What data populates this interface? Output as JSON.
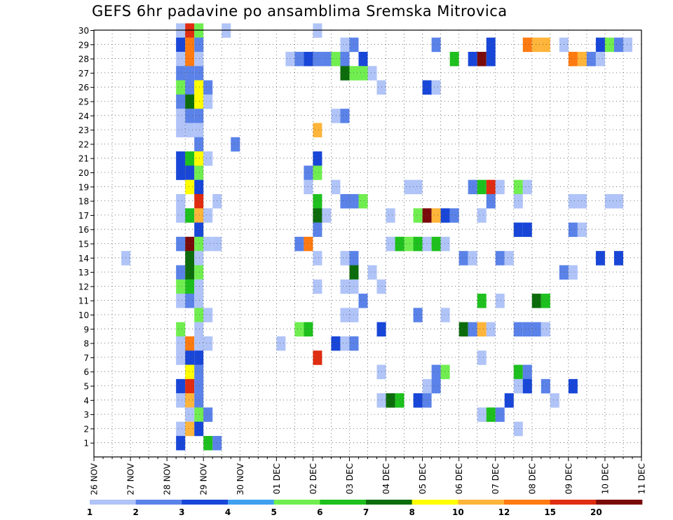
{
  "title": "GEFS 6hr padavine po ansamblima Sremska Mitrovica",
  "chart_data": {
    "type": "heatmap",
    "title": "GEFS 6hr padavine po ansamblima Sremska Mitrovica",
    "x_tick_labels": [
      "26 NOV",
      "27 NOV",
      "28 NOV",
      "29 NOV",
      "30 NOV",
      "01 DEC",
      "02 DEC",
      "03 DEC",
      "04 DEC",
      "05 DEC",
      "06 DEC",
      "07 DEC",
      "08 DEC",
      "09 DEC",
      "10 DEC",
      "11 DEC"
    ],
    "y_tick_labels": [
      "1",
      "2",
      "3",
      "4",
      "5",
      "6",
      "7",
      "8",
      "9",
      "10",
      "11",
      "12",
      "13",
      "14",
      "15",
      "16",
      "17",
      "18",
      "19",
      "20",
      "21",
      "22",
      "23",
      "24",
      "25",
      "26",
      "27",
      "28",
      "29",
      "30"
    ],
    "x_range": [
      "26 NOV 00h",
      "11 DEC 00h"
    ],
    "y_range": [
      0,
      30
    ],
    "colorbar": {
      "labels": [
        "1",
        "2",
        "3",
        "4",
        "5",
        "6",
        "7",
        "8",
        "10",
        "12",
        "15",
        "20"
      ],
      "colors": [
        "#b0c4f8",
        "#5a82e8",
        "#1846d8",
        "#3fa0f0",
        "#70ee50",
        "#1ec01e",
        "#0c6c0c",
        "#ffff00",
        "#ffb43a",
        "#ff7a10",
        "#e02c10",
        "#7a0a0a"
      ]
    },
    "cells": [
      {
        "m": 30,
        "t": "28 NOV 06h",
        "v": 1
      },
      {
        "m": 30,
        "t": "28 NOV 12h",
        "v": 15
      },
      {
        "m": 30,
        "t": "28 NOV 18h",
        "v": 5
      },
      {
        "m": 30,
        "t": "29 NOV 12h",
        "v": 1
      },
      {
        "m": 30,
        "t": "02 DEC 00h",
        "v": 1
      },
      {
        "m": 29,
        "t": "28 NOV 06h",
        "v": 3
      },
      {
        "m": 29,
        "t": "28 NOV 12h",
        "v": 12
      },
      {
        "m": 29,
        "t": "28 NOV 18h",
        "v": 2
      },
      {
        "m": 29,
        "t": "02 DEC 18h",
        "v": 1
      },
      {
        "m": 29,
        "t": "03 DEC 00h",
        "v": 2
      },
      {
        "m": 29,
        "t": "05 DEC 06h",
        "v": 2
      },
      {
        "m": 29,
        "t": "06 DEC 18h",
        "v": 3
      },
      {
        "m": 29,
        "t": "07 DEC 18h",
        "v": 12
      },
      {
        "m": 29,
        "t": "08 DEC 00h",
        "v": 10
      },
      {
        "m": 29,
        "t": "08 DEC 06h",
        "v": 10
      },
      {
        "m": 29,
        "t": "08 DEC 18h",
        "v": 1
      },
      {
        "m": 29,
        "t": "09 DEC 18h",
        "v": 3
      },
      {
        "m": 29,
        "t": "10 DEC 00h",
        "v": 5
      },
      {
        "m": 29,
        "t": "10 DEC 06h",
        "v": 2
      },
      {
        "m": 29,
        "t": "10 DEC 12h",
        "v": 1
      },
      {
        "m": 28,
        "t": "28 NOV 06h",
        "v": 1
      },
      {
        "m": 28,
        "t": "28 NOV 12h",
        "v": 12
      },
      {
        "m": 28,
        "t": "28 NOV 18h",
        "v": 1
      },
      {
        "m": 28,
        "t": "01 DEC 06h",
        "v": 1
      },
      {
        "m": 28,
        "t": "01 DEC 12h",
        "v": 2
      },
      {
        "m": 28,
        "t": "01 DEC 18h",
        "v": 3
      },
      {
        "m": 28,
        "t": "02 DEC 00h",
        "v": 2
      },
      {
        "m": 28,
        "t": "02 DEC 06h",
        "v": 2
      },
      {
        "m": 28,
        "t": "02 DEC 12h",
        "v": 5
      },
      {
        "m": 28,
        "t": "02 DEC 18h",
        "v": 2
      },
      {
        "m": 28,
        "t": "03 DEC 06h",
        "v": 3
      },
      {
        "m": 28,
        "t": "05 DEC 18h",
        "v": 6
      },
      {
        "m": 28,
        "t": "06 DEC 06h",
        "v": 3
      },
      {
        "m": 28,
        "t": "06 DEC 12h",
        "v": 20
      },
      {
        "m": 28,
        "t": "06 DEC 18h",
        "v": 3
      },
      {
        "m": 28,
        "t": "09 DEC 00h",
        "v": 12
      },
      {
        "m": 28,
        "t": "09 DEC 06h",
        "v": 10
      },
      {
        "m": 28,
        "t": "09 DEC 12h",
        "v": 2
      },
      {
        "m": 28,
        "t": "09 DEC 18h",
        "v": 1
      },
      {
        "m": 27,
        "t": "28 NOV 06h",
        "v": 2
      },
      {
        "m": 27,
        "t": "28 NOV 12h",
        "v": 2
      },
      {
        "m": 27,
        "t": "28 NOV 18h",
        "v": 2
      },
      {
        "m": 27,
        "t": "02 DEC 18h",
        "v": 7
      },
      {
        "m": 27,
        "t": "03 DEC 00h",
        "v": 5
      },
      {
        "m": 27,
        "t": "03 DEC 06h",
        "v": 5
      },
      {
        "m": 27,
        "t": "03 DEC 12h",
        "v": 1
      },
      {
        "m": 26,
        "t": "28 NOV 06h",
        "v": 5
      },
      {
        "m": 26,
        "t": "28 NOV 12h",
        "v": 2
      },
      {
        "m": 26,
        "t": "28 NOV 18h",
        "v": 8
      },
      {
        "m": 26,
        "t": "29 NOV 00h",
        "v": 2
      },
      {
        "m": 26,
        "t": "03 DEC 18h",
        "v": 1
      },
      {
        "m": 26,
        "t": "05 DEC 00h",
        "v": 3
      },
      {
        "m": 26,
        "t": "05 DEC 06h",
        "v": 1
      },
      {
        "m": 25,
        "t": "28 NOV 06h",
        "v": 2
      },
      {
        "m": 25,
        "t": "28 NOV 12h",
        "v": 7
      },
      {
        "m": 25,
        "t": "28 NOV 18h",
        "v": 8
      },
      {
        "m": 25,
        "t": "29 NOV 00h",
        "v": 1
      },
      {
        "m": 24,
        "t": "28 NOV 06h",
        "v": 1
      },
      {
        "m": 24,
        "t": "28 NOV 12h",
        "v": 2
      },
      {
        "m": 24,
        "t": "28 NOV 18h",
        "v": 2
      },
      {
        "m": 24,
        "t": "02 DEC 12h",
        "v": 1
      },
      {
        "m": 24,
        "t": "02 DEC 18h",
        "v": 2
      },
      {
        "m": 23,
        "t": "28 NOV 06h",
        "v": 1
      },
      {
        "m": 23,
        "t": "28 NOV 12h",
        "v": 1
      },
      {
        "m": 23,
        "t": "28 NOV 18h",
        "v": 1
      },
      {
        "m": 23,
        "t": "02 DEC 00h",
        "v": 10
      },
      {
        "m": 22,
        "t": "28 NOV 18h",
        "v": 2
      },
      {
        "m": 22,
        "t": "29 NOV 18h",
        "v": 2
      },
      {
        "m": 21,
        "t": "28 NOV 06h",
        "v": 3
      },
      {
        "m": 21,
        "t": "28 NOV 12h",
        "v": 6
      },
      {
        "m": 21,
        "t": "28 NOV 18h",
        "v": 8
      },
      {
        "m": 21,
        "t": "29 NOV 00h",
        "v": 1
      },
      {
        "m": 21,
        "t": "02 DEC 00h",
        "v": 3
      },
      {
        "m": 20,
        "t": "28 NOV 06h",
        "v": 3
      },
      {
        "m": 20,
        "t": "28 NOV 12h",
        "v": 3
      },
      {
        "m": 20,
        "t": "28 NOV 18h",
        "v": 5
      },
      {
        "m": 20,
        "t": "01 DEC 18h",
        "v": 2
      },
      {
        "m": 20,
        "t": "02 DEC 00h",
        "v": 5
      },
      {
        "m": 19,
        "t": "28 NOV 12h",
        "v": 8
      },
      {
        "m": 19,
        "t": "28 NOV 18h",
        "v": 3
      },
      {
        "m": 19,
        "t": "01 DEC 18h",
        "v": 1
      },
      {
        "m": 19,
        "t": "02 DEC 12h",
        "v": 1
      },
      {
        "m": 19,
        "t": "04 DEC 12h",
        "v": 1
      },
      {
        "m": 19,
        "t": "04 DEC 18h",
        "v": 1
      },
      {
        "m": 19,
        "t": "06 DEC 06h",
        "v": 2
      },
      {
        "m": 19,
        "t": "06 DEC 12h",
        "v": 6
      },
      {
        "m": 19,
        "t": "06 DEC 18h",
        "v": 15
      },
      {
        "m": 19,
        "t": "07 DEC 00h",
        "v": 1
      },
      {
        "m": 19,
        "t": "07 DEC 12h",
        "v": 5
      },
      {
        "m": 19,
        "t": "07 DEC 18h",
        "v": 1
      },
      {
        "m": 18,
        "t": "28 NOV 06h",
        "v": 1
      },
      {
        "m": 18,
        "t": "28 NOV 18h",
        "v": 15
      },
      {
        "m": 18,
        "t": "29 NOV 06h",
        "v": 1
      },
      {
        "m": 18,
        "t": "02 DEC 00h",
        "v": 6
      },
      {
        "m": 18,
        "t": "02 DEC 18h",
        "v": 2
      },
      {
        "m": 18,
        "t": "03 DEC 00h",
        "v": 2
      },
      {
        "m": 18,
        "t": "03 DEC 06h",
        "v": 5
      },
      {
        "m": 18,
        "t": "06 DEC 18h",
        "v": 2
      },
      {
        "m": 18,
        "t": "07 DEC 12h",
        "v": 1
      },
      {
        "m": 18,
        "t": "09 DEC 00h",
        "v": 1
      },
      {
        "m": 18,
        "t": "09 DEC 06h",
        "v": 1
      },
      {
        "m": 18,
        "t": "10 DEC 00h",
        "v": 1
      },
      {
        "m": 18,
        "t": "10 DEC 06h",
        "v": 1
      },
      {
        "m": 17,
        "t": "28 NOV 06h",
        "v": 1
      },
      {
        "m": 17,
        "t": "28 NOV 12h",
        "v": 6
      },
      {
        "m": 17,
        "t": "28 NOV 18h",
        "v": 10
      },
      {
        "m": 17,
        "t": "29 NOV 00h",
        "v": 1
      },
      {
        "m": 17,
        "t": "02 DEC 00h",
        "v": 7
      },
      {
        "m": 17,
        "t": "02 DEC 06h",
        "v": 1
      },
      {
        "m": 17,
        "t": "04 DEC 00h",
        "v": 1
      },
      {
        "m": 17,
        "t": "04 DEC 18h",
        "v": 5
      },
      {
        "m": 17,
        "t": "05 DEC 00h",
        "v": 20
      },
      {
        "m": 17,
        "t": "05 DEC 06h",
        "v": 10
      },
      {
        "m": 17,
        "t": "05 DEC 12h",
        "v": 3
      },
      {
        "m": 17,
        "t": "05 DEC 18h",
        "v": 2
      },
      {
        "m": 17,
        "t": "06 DEC 12h",
        "v": 1
      },
      {
        "m": 16,
        "t": "28 NOV 18h",
        "v": 3
      },
      {
        "m": 16,
        "t": "02 DEC 00h",
        "v": 2
      },
      {
        "m": 16,
        "t": "07 DEC 12h",
        "v": 3
      },
      {
        "m": 16,
        "t": "07 DEC 18h",
        "v": 3
      },
      {
        "m": 16,
        "t": "09 DEC 00h",
        "v": 2
      },
      {
        "m": 16,
        "t": "09 DEC 06h",
        "v": 1
      },
      {
        "m": 15,
        "t": "28 NOV 06h",
        "v": 2
      },
      {
        "m": 15,
        "t": "28 NOV 12h",
        "v": 20
      },
      {
        "m": 15,
        "t": "28 NOV 18h",
        "v": 5
      },
      {
        "m": 15,
        "t": "29 NOV 00h",
        "v": 1
      },
      {
        "m": 15,
        "t": "29 NOV 06h",
        "v": 1
      },
      {
        "m": 15,
        "t": "01 DEC 12h",
        "v": 2
      },
      {
        "m": 15,
        "t": "01 DEC 18h",
        "v": 12
      },
      {
        "m": 15,
        "t": "04 DEC 00h",
        "v": 1
      },
      {
        "m": 15,
        "t": "04 DEC 06h",
        "v": 6
      },
      {
        "m": 15,
        "t": "04 DEC 12h",
        "v": 5
      },
      {
        "m": 15,
        "t": "04 DEC 18h",
        "v": 6
      },
      {
        "m": 15,
        "t": "05 DEC 00h",
        "v": 1
      },
      {
        "m": 15,
        "t": "05 DEC 06h",
        "v": 6
      },
      {
        "m": 15,
        "t": "05 DEC 12h",
        "v": 1
      },
      {
        "m": 14,
        "t": "26 NOV 18h",
        "v": 1
      },
      {
        "m": 14,
        "t": "28 NOV 12h",
        "v": 7
      },
      {
        "m": 14,
        "t": "28 NOV 18h",
        "v": 1
      },
      {
        "m": 14,
        "t": "02 DEC 00h",
        "v": 1
      },
      {
        "m": 14,
        "t": "02 DEC 18h",
        "v": 1
      },
      {
        "m": 14,
        "t": "03 DEC 00h",
        "v": 2
      },
      {
        "m": 14,
        "t": "06 DEC 00h",
        "v": 2
      },
      {
        "m": 14,
        "t": "06 DEC 06h",
        "v": 1
      },
      {
        "m": 14,
        "t": "07 DEC 00h",
        "v": 2
      },
      {
        "m": 14,
        "t": "07 DEC 06h",
        "v": 1
      },
      {
        "m": 14,
        "t": "09 DEC 18h",
        "v": 3
      },
      {
        "m": 14,
        "t": "10 DEC 06h",
        "v": 3
      },
      {
        "m": 13,
        "t": "28 NOV 06h",
        "v": 2
      },
      {
        "m": 13,
        "t": "28 NOV 12h",
        "v": 7
      },
      {
        "m": 13,
        "t": "28 NOV 18h",
        "v": 5
      },
      {
        "m": 13,
        "t": "03 DEC 00h",
        "v": 7
      },
      {
        "m": 13,
        "t": "03 DEC 12h",
        "v": 1
      },
      {
        "m": 13,
        "t": "08 DEC 18h",
        "v": 2
      },
      {
        "m": 13,
        "t": "09 DEC 00h",
        "v": 1
      },
      {
        "m": 12,
        "t": "28 NOV 06h",
        "v": 5
      },
      {
        "m": 12,
        "t": "28 NOV 12h",
        "v": 6
      },
      {
        "m": 12,
        "t": "28 NOV 18h",
        "v": 1
      },
      {
        "m": 12,
        "t": "02 DEC 00h",
        "v": 1
      },
      {
        "m": 12,
        "t": "02 DEC 18h",
        "v": 1
      },
      {
        "m": 12,
        "t": "03 DEC 00h",
        "v": 1
      },
      {
        "m": 12,
        "t": "03 DEC 18h",
        "v": 1
      },
      {
        "m": 11,
        "t": "28 NOV 06h",
        "v": 1
      },
      {
        "m": 11,
        "t": "28 NOV 12h",
        "v": 2
      },
      {
        "m": 11,
        "t": "28 NOV 18h",
        "v": 1
      },
      {
        "m": 11,
        "t": "03 DEC 06h",
        "v": 2
      },
      {
        "m": 11,
        "t": "06 DEC 12h",
        "v": 6
      },
      {
        "m": 11,
        "t": "07 DEC 00h",
        "v": 1
      },
      {
        "m": 11,
        "t": "08 DEC 00h",
        "v": 7
      },
      {
        "m": 11,
        "t": "08 DEC 06h",
        "v": 6
      },
      {
        "m": 10,
        "t": "28 NOV 18h",
        "v": 5
      },
      {
        "m": 10,
        "t": "29 NOV 00h",
        "v": 1
      },
      {
        "m": 10,
        "t": "02 DEC 18h",
        "v": 1
      },
      {
        "m": 10,
        "t": "03 DEC 00h",
        "v": 1
      },
      {
        "m": 10,
        "t": "04 DEC 18h",
        "v": 2
      },
      {
        "m": 10,
        "t": "05 DEC 12h",
        "v": 1
      },
      {
        "m": 9,
        "t": "28 NOV 06h",
        "v": 5
      },
      {
        "m": 9,
        "t": "28 NOV 18h",
        "v": 1
      },
      {
        "m": 9,
        "t": "01 DEC 12h",
        "v": 5
      },
      {
        "m": 9,
        "t": "01 DEC 18h",
        "v": 6
      },
      {
        "m": 9,
        "t": "03 DEC 18h",
        "v": 3
      },
      {
        "m": 9,
        "t": "06 DEC 00h",
        "v": 7
      },
      {
        "m": 9,
        "t": "06 DEC 06h",
        "v": 2
      },
      {
        "m": 9,
        "t": "06 DEC 12h",
        "v": 10
      },
      {
        "m": 9,
        "t": "06 DEC 18h",
        "v": 1
      },
      {
        "m": 9,
        "t": "07 DEC 12h",
        "v": 2
      },
      {
        "m": 9,
        "t": "07 DEC 18h",
        "v": 2
      },
      {
        "m": 9,
        "t": "08 DEC 00h",
        "v": 2
      },
      {
        "m": 9,
        "t": "08 DEC 06h",
        "v": 1
      },
      {
        "m": 8,
        "t": "28 NOV 06h",
        "v": 1
      },
      {
        "m": 8,
        "t": "28 NOV 12h",
        "v": 12
      },
      {
        "m": 8,
        "t": "28 NOV 18h",
        "v": 1
      },
      {
        "m": 8,
        "t": "29 NOV 00h",
        "v": 1
      },
      {
        "m": 8,
        "t": "01 DEC 00h",
        "v": 1
      },
      {
        "m": 8,
        "t": "02 DEC 12h",
        "v": 3
      },
      {
        "m": 8,
        "t": "02 DEC 18h",
        "v": 1
      },
      {
        "m": 8,
        "t": "03 DEC 00h",
        "v": 2
      },
      {
        "m": 7,
        "t": "28 NOV 06h",
        "v": 1
      },
      {
        "m": 7,
        "t": "28 NOV 12h",
        "v": 3
      },
      {
        "m": 7,
        "t": "28 NOV 18h",
        "v": 3
      },
      {
        "m": 7,
        "t": "02 DEC 00h",
        "v": 15
      },
      {
        "m": 7,
        "t": "06 DEC 12h",
        "v": 1
      },
      {
        "m": 6,
        "t": "28 NOV 12h",
        "v": 8
      },
      {
        "m": 6,
        "t": "28 NOV 18h",
        "v": 2
      },
      {
        "m": 6,
        "t": "03 DEC 18h",
        "v": 1
      },
      {
        "m": 6,
        "t": "05 DEC 06h",
        "v": 2
      },
      {
        "m": 6,
        "t": "05 DEC 12h",
        "v": 5
      },
      {
        "m": 6,
        "t": "07 DEC 12h",
        "v": 6
      },
      {
        "m": 6,
        "t": "07 DEC 18h",
        "v": 2
      },
      {
        "m": 5,
        "t": "28 NOV 06h",
        "v": 3
      },
      {
        "m": 5,
        "t": "28 NOV 12h",
        "v": 15
      },
      {
        "m": 5,
        "t": "28 NOV 18h",
        "v": 2
      },
      {
        "m": 5,
        "t": "05 DEC 00h",
        "v": 1
      },
      {
        "m": 5,
        "t": "05 DEC 06h",
        "v": 2
      },
      {
        "m": 5,
        "t": "07 DEC 12h",
        "v": 1
      },
      {
        "m": 5,
        "t": "07 DEC 18h",
        "v": 3
      },
      {
        "m": 5,
        "t": "08 DEC 06h",
        "v": 2
      },
      {
        "m": 5,
        "t": "09 DEC 00h",
        "v": 3
      },
      {
        "m": 4,
        "t": "28 NOV 06h",
        "v": 1
      },
      {
        "m": 4,
        "t": "28 NOV 12h",
        "v": 10
      },
      {
        "m": 4,
        "t": "28 NOV 18h",
        "v": 2
      },
      {
        "m": 4,
        "t": "03 DEC 18h",
        "v": 1
      },
      {
        "m": 4,
        "t": "04 DEC 00h",
        "v": 7
      },
      {
        "m": 4,
        "t": "04 DEC 06h",
        "v": 6
      },
      {
        "m": 4,
        "t": "04 DEC 18h",
        "v": 3
      },
      {
        "m": 4,
        "t": "05 DEC 00h",
        "v": 2
      },
      {
        "m": 4,
        "t": "07 DEC 06h",
        "v": 3
      },
      {
        "m": 4,
        "t": "08 DEC 12h",
        "v": 1
      },
      {
        "m": 3,
        "t": "28 NOV 12h",
        "v": 1
      },
      {
        "m": 3,
        "t": "28 NOV 18h",
        "v": 5
      },
      {
        "m": 3,
        "t": "29 NOV 00h",
        "v": 2
      },
      {
        "m": 3,
        "t": "06 DEC 12h",
        "v": 1
      },
      {
        "m": 3,
        "t": "06 DEC 18h",
        "v": 6
      },
      {
        "m": 3,
        "t": "07 DEC 00h",
        "v": 2
      },
      {
        "m": 2,
        "t": "28 NOV 06h",
        "v": 1
      },
      {
        "m": 2,
        "t": "28 NOV 12h",
        "v": 10
      },
      {
        "m": 2,
        "t": "28 NOV 18h",
        "v": 3
      },
      {
        "m": 2,
        "t": "07 DEC 12h",
        "v": 1
      },
      {
        "m": 1,
        "t": "28 NOV 06h",
        "v": 3
      },
      {
        "m": 1,
        "t": "29 NOV 00h",
        "v": 6
      },
      {
        "m": 1,
        "t": "29 NOV 06h",
        "v": 2
      }
    ]
  }
}
